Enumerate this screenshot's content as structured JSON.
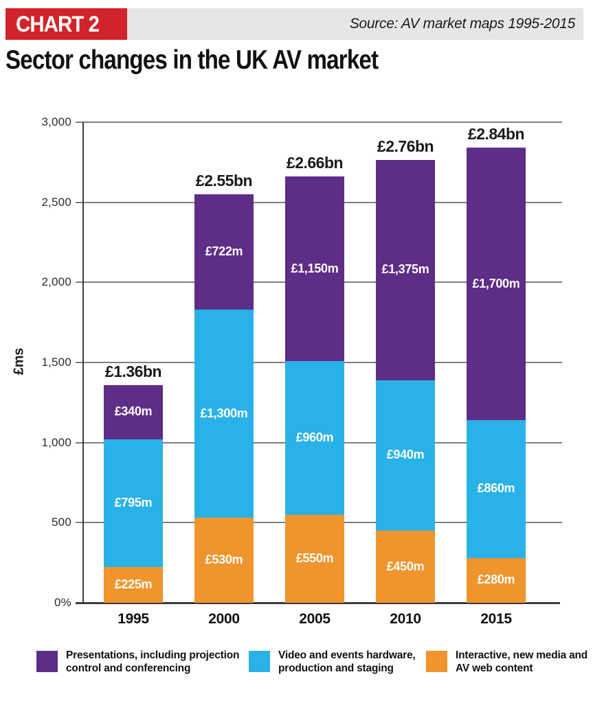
{
  "header": {
    "badge": "CHART 2",
    "source": "Source: AV market maps 1995-2015",
    "title": "Sector changes in the UK AV market"
  },
  "chart_data": {
    "type": "bar",
    "stacked": true,
    "title": "Sector changes in the UK AV market",
    "xlabel": "",
    "ylabel": "£ms",
    "ylim": [
      0,
      3000
    ],
    "grid": true,
    "legend_position": "bottom",
    "yticks": [
      {
        "value": 0,
        "label": "0%"
      },
      {
        "value": 500,
        "label": "500"
      },
      {
        "value": 1000,
        "label": "1,000"
      },
      {
        "value": 1500,
        "label": "1,500"
      },
      {
        "value": 2000,
        "label": "2,000"
      },
      {
        "value": 2500,
        "label": "2,500"
      },
      {
        "value": 3000,
        "label": "3,000"
      }
    ],
    "categories": [
      "1995",
      "2000",
      "2005",
      "2010",
      "2015"
    ],
    "series": [
      {
        "name": "Interactive, new media and AV web content",
        "color": "#F0942D",
        "values": [
          225,
          530,
          550,
          450,
          280
        ],
        "value_labels": [
          "£225m",
          "£530m",
          "£550m",
          "£450m",
          "£280m"
        ]
      },
      {
        "name": "Video and events hardware, production and staging",
        "color": "#29B2E8",
        "values": [
          795,
          1300,
          960,
          940,
          860
        ],
        "value_labels": [
          "£795m",
          "£1,300m",
          "£960m",
          "£940m",
          "£860m"
        ]
      },
      {
        "name": "Presentations, including projection control and conferencing",
        "color": "#5E2D87",
        "values": [
          340,
          722,
          1150,
          1375,
          1700
        ],
        "value_labels": [
          "£340m",
          "£722m",
          "£1,150m",
          "£1,375m",
          "£1,700m"
        ]
      }
    ],
    "totals": [
      {
        "category": "1995",
        "label": "£1.36bn"
      },
      {
        "category": "2000",
        "label": "£2.55bn"
      },
      {
        "category": "2005",
        "label": "£2.66bn"
      },
      {
        "category": "2010",
        "label": "£2.76bn"
      },
      {
        "category": "2015",
        "label": "£2.84bn"
      }
    ]
  },
  "legend": {
    "items": [
      {
        "line1": "Presentations, including projection",
        "line2": "control and conferencing",
        "color": "#5E2D87"
      },
      {
        "line1": "Video and events hardware,",
        "line2": "production and staging",
        "color": "#29B2E8"
      },
      {
        "line1": "Interactive, new media and",
        "line2": "AV web content",
        "color": "#F0942D"
      }
    ]
  },
  "colors": {
    "badge_red": "#D2232A",
    "header_strip": "#E7E6E6",
    "purple": "#5E2D87",
    "blue": "#29B2E8",
    "orange": "#F0942D",
    "gridline": "#7F7F7F",
    "axis": "#3C3C3C"
  }
}
